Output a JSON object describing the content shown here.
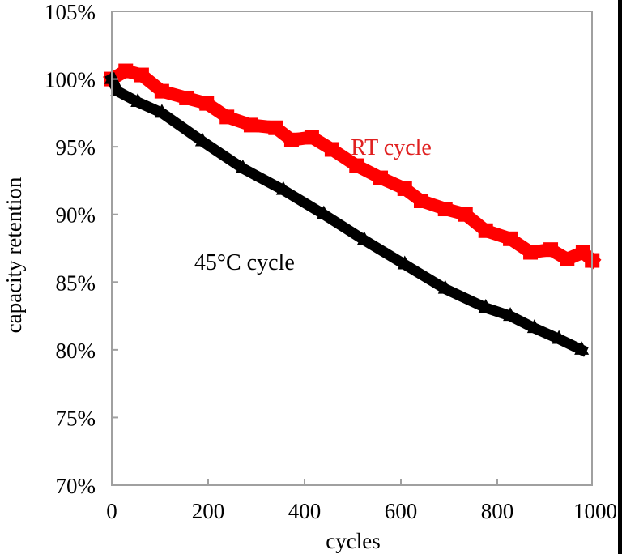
{
  "chart_data": {
    "type": "line",
    "title": "",
    "xlabel": "cycles",
    "ylabel": "capacity retention",
    "xlim": [
      0,
      1000
    ],
    "ylim": [
      70,
      105
    ],
    "xticks": [
      0,
      200,
      400,
      600,
      800,
      1000
    ],
    "xtick_labels": [
      "0",
      "200",
      "400",
      "600",
      "800",
      "1000"
    ],
    "yticks": [
      70,
      75,
      80,
      85,
      90,
      95,
      100,
      105
    ],
    "ytick_labels": [
      "70%",
      "75%",
      "80%",
      "85%",
      "90%",
      "95%",
      "100%",
      "105%"
    ],
    "grid": false,
    "legend": "none",
    "series": [
      {
        "name": "RT cycle",
        "color": "#ff0000",
        "marker": "square",
        "x": [
          0,
          29,
          62,
          104,
          155,
          197,
          239,
          289,
          340,
          373,
          415,
          457,
          508,
          558,
          608,
          642,
          692,
          734,
          776,
          827,
          869,
          911,
          945,
          978,
          997
        ],
        "y": [
          100.0,
          100.6,
          100.3,
          99.1,
          98.6,
          98.2,
          97.2,
          96.6,
          96.4,
          95.5,
          95.7,
          94.8,
          93.6,
          92.7,
          91.9,
          91.0,
          90.4,
          90.0,
          88.8,
          88.2,
          87.2,
          87.4,
          86.7,
          87.2,
          86.6
        ]
      },
      {
        "name": "45°C cycle",
        "color": "#000000",
        "marker": "triangle",
        "x": [
          0,
          12,
          54,
          104,
          188,
          272,
          356,
          440,
          524,
          608,
          692,
          776,
          827,
          877,
          928,
          975
        ],
        "y": [
          100.0,
          99.1,
          98.3,
          97.5,
          95.4,
          93.4,
          91.8,
          90.0,
          88.1,
          86.3,
          84.5,
          83.1,
          82.5,
          81.6,
          80.8,
          80.0
        ]
      }
    ],
    "annotations": [
      {
        "text": "RT cycle",
        "color": "#e02020",
        "at_x": 560,
        "at_y": 95.0
      },
      {
        "text": "45°C cycle",
        "color": "#000000",
        "at_x": 235,
        "at_y": 86.5
      }
    ]
  }
}
